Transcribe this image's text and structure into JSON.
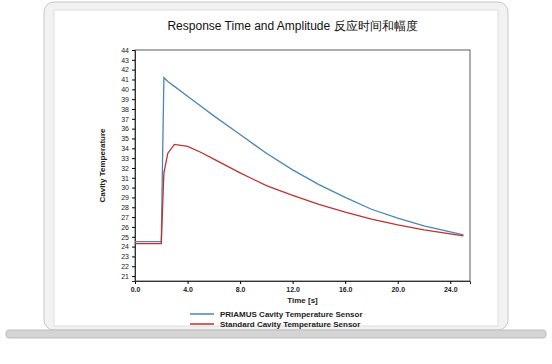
{
  "chart_data": {
    "type": "line",
    "title": "Response Time and Amplitude 反应时间和幅度",
    "x_label": "Time [s]",
    "y_label": "Cavity Temperature",
    "x": [
      0,
      1,
      2.0,
      2.1,
      2.2,
      2.5,
      3,
      4,
      5,
      6,
      8,
      10,
      12,
      14,
      16,
      18,
      20,
      22,
      24,
      25
    ],
    "series": [
      {
        "name": "PRIAMUS Cavity Temperature Sensor",
        "color": "#4a86b8",
        "line_style": "solid",
        "values": [
          24.5,
          24.5,
          24.5,
          33,
          41.2,
          40.8,
          40.3,
          39.3,
          38.3,
          37.3,
          35.4,
          33.5,
          31.8,
          30.3,
          29.0,
          27.8,
          26.9,
          26.1,
          25.5,
          25.2
        ]
      },
      {
        "name": "Standard Cavity Temperature Sensor",
        "color": "#c1312e",
        "line_style": "solid",
        "values": [
          24.3,
          24.3,
          24.3,
          28,
          31.5,
          33.5,
          34.4,
          34.2,
          33.6,
          32.9,
          31.5,
          30.2,
          29.2,
          28.3,
          27.5,
          26.8,
          26.2,
          25.7,
          25.3,
          25.1
        ]
      }
    ],
    "xlim": [
      0,
      25.5
    ],
    "ylim": [
      20.5,
      44
    ],
    "xticks": [
      {
        "value": 0,
        "label": "0.0"
      },
      {
        "value": 4,
        "label": "4.0"
      },
      {
        "value": 8,
        "label": "8.0"
      },
      {
        "value": 12,
        "label": "12.0"
      },
      {
        "value": 16,
        "label": "16.0"
      },
      {
        "value": 20,
        "label": "20.0"
      },
      {
        "value": 24,
        "label": "24.0"
      }
    ],
    "yticks": [
      21,
      22,
      23,
      24,
      25,
      26,
      27,
      28,
      29,
      30,
      31,
      32,
      33,
      34,
      35,
      36,
      37,
      38,
      39,
      40,
      41,
      42,
      43,
      44
    ],
    "grid": false,
    "legend": "bottom"
  }
}
